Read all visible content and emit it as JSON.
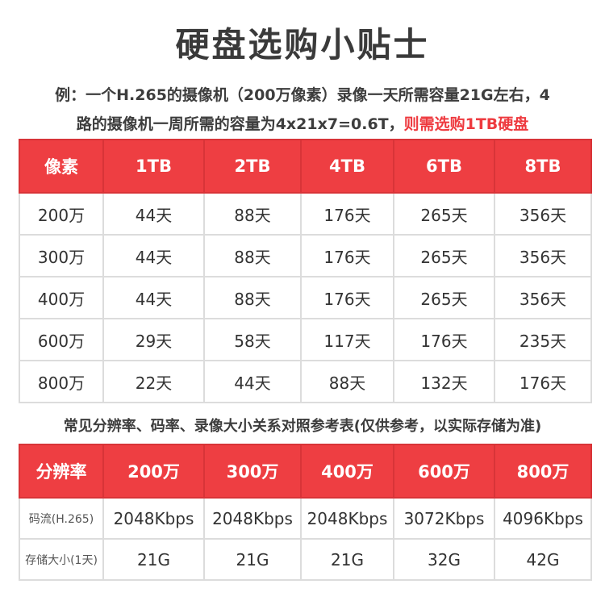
{
  "title": "硬盘选购小贴士",
  "note": {
    "line1": "例：一个H.265的摄像机（200万像素）录像一天所需容量21G左右，4",
    "line2": "路的摄像机一周所需的容量为4x21x7=0.6T，",
    "line2_highlight": "则需选购1TB硬盘"
  },
  "accent_color": "#ee3e42",
  "table1": {
    "headers": [
      "像素",
      "1TB",
      "2TB",
      "4TB",
      "6TB",
      "8TB"
    ],
    "rows": [
      [
        "200万",
        "44天",
        "88天",
        "176天",
        "265天",
        "356天"
      ],
      [
        "300万",
        "44天",
        "88天",
        "176天",
        "265天",
        "356天"
      ],
      [
        "400万",
        "44天",
        "88天",
        "176天",
        "265天",
        "356天"
      ],
      [
        "600万",
        "29天",
        "58天",
        "117天",
        "176天",
        "235天"
      ],
      [
        "800万",
        "22天",
        "44天",
        "88天",
        "132天",
        "176天"
      ]
    ]
  },
  "caption": "常见分辨率、码率、录像大小关系对照参考表(仅供参考，以实际存储为准)",
  "table2": {
    "headers": [
      "分辨率",
      "200万",
      "300万",
      "400万",
      "600万",
      "800万"
    ],
    "rows": [
      [
        "码流(H.265)",
        "2048Kbps",
        "2048Kbps",
        "2048Kbps",
        "3072Kbps",
        "4096Kbps"
      ],
      [
        "存储大小(1天)",
        "21G",
        "21G",
        "21G",
        "32G",
        "42G"
      ]
    ]
  }
}
